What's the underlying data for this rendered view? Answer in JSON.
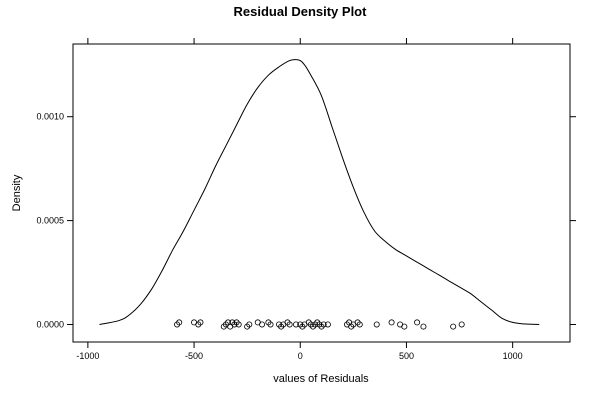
{
  "chart_data": {
    "type": "line",
    "title": "Residual Density Plot",
    "xlabel": "values of Residuals",
    "ylabel": "Density",
    "xlim": [
      -1070,
      1270
    ],
    "ylim": [
      -8.43e-05,
      0.00135
    ],
    "x_ticks": [
      -1000,
      -500,
      0,
      500,
      1000
    ],
    "x_tick_labels": [
      "-1000",
      "-500",
      "0",
      "500",
      "1000"
    ],
    "y_ticks": [
      0.0,
      0.0005,
      0.001
    ],
    "y_tick_labels": [
      "0.0000",
      "0.0005",
      "0.0010"
    ],
    "grid": false,
    "series": [
      {
        "kind": "density",
        "x": [
          -945,
          -850,
          -800,
          -750,
          -700,
          -650,
          -600,
          -550,
          -500,
          -450,
          -400,
          -350,
          -300,
          -250,
          -200,
          -150,
          -100,
          -50,
          -20,
          0,
          20,
          50,
          100,
          150,
          200,
          250,
          300,
          350,
          400,
          450,
          500,
          550,
          600,
          650,
          700,
          750,
          800,
          850,
          900,
          950,
          1000,
          1050,
          1125
        ],
        "y": [
          0.0,
          2e-05,
          5e-05,
          0.0001,
          0.00017,
          0.00026,
          0.00036,
          0.00045,
          0.00055,
          0.00065,
          0.00076,
          0.00086,
          0.00096,
          0.00106,
          0.00114,
          0.0012,
          0.00124,
          0.00127,
          0.001275,
          0.00127,
          0.00125,
          0.0012,
          0.0011,
          0.00095,
          0.0008,
          0.00066,
          0.00054,
          0.00045,
          0.0004,
          0.00036,
          0.00033,
          0.0003,
          0.00027,
          0.00024,
          0.00021,
          0.00018,
          0.00015,
          0.00011,
          7e-05,
          3e-05,
          1e-05,
          3e-06,
          0.0
        ]
      },
      {
        "kind": "rug",
        "x": [
          -580,
          -570,
          -500,
          -480,
          -470,
          -360,
          -350,
          -340,
          -330,
          -320,
          -310,
          -300,
          -290,
          -250,
          -240,
          -200,
          -180,
          -150,
          -140,
          -100,
          -90,
          -80,
          -60,
          -50,
          -20,
          0,
          10,
          20,
          40,
          50,
          60,
          70,
          80,
          90,
          100,
          110,
          130,
          220,
          230,
          240,
          250,
          270,
          280,
          360,
          430,
          470,
          490,
          550,
          580,
          720,
          760
        ],
        "y": [
          0.0,
          1e-05,
          1e-05,
          0.0,
          1e-05,
          -1e-05,
          0.0,
          1e-05,
          -1e-05,
          1e-05,
          0.0,
          1e-05,
          0.0,
          -1e-05,
          0.0,
          1e-05,
          0.0,
          1e-05,
          0.0,
          0.0,
          -1e-05,
          0.0,
          1e-05,
          0.0,
          0.0,
          0.0,
          -1e-05,
          0.0,
          1e-05,
          0.0,
          -1e-05,
          0.0,
          1e-05,
          0.0,
          -1e-05,
          0.0,
          0.0,
          0.0,
          1e-05,
          -1e-05,
          0.0,
          1e-05,
          0.0,
          0.0,
          1e-05,
          0.0,
          -1e-05,
          1e-05,
          -1e-05,
          -1e-05,
          0.0
        ]
      }
    ]
  }
}
